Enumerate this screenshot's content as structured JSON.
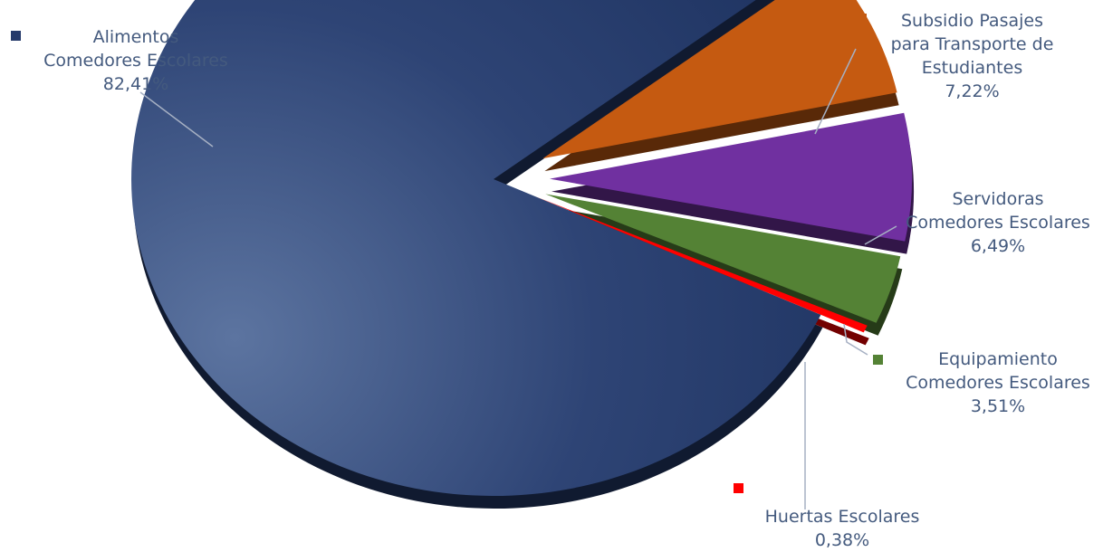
{
  "chart_data": {
    "type": "pie",
    "title": "",
    "slices": [
      {
        "label_lines": [
          "Alimentos",
          "Comedores Escolares",
          "82,41%"
        ],
        "value": 82.41,
        "color": "#24396a"
      },
      {
        "label_lines": [
          "Subsidio Pasajes",
          "para Transporte de",
          "Estudiantes",
          "7,22%"
        ],
        "value": 7.22,
        "color": "#c55a11"
      },
      {
        "label_lines": [
          "Servidoras",
          "Comedores Escolares",
          "6,49%"
        ],
        "value": 6.49,
        "color": "#7030a0"
      },
      {
        "label_lines": [
          "Equipamiento",
          "Comedores Escolares",
          "3,51%"
        ],
        "value": 3.51,
        "color": "#548235"
      },
      {
        "label_lines": [
          "Huertas Escolares",
          "0,38%"
        ],
        "value": 0.38,
        "color": "#ff0000"
      }
    ],
    "legend": "labels-with-markers"
  }
}
